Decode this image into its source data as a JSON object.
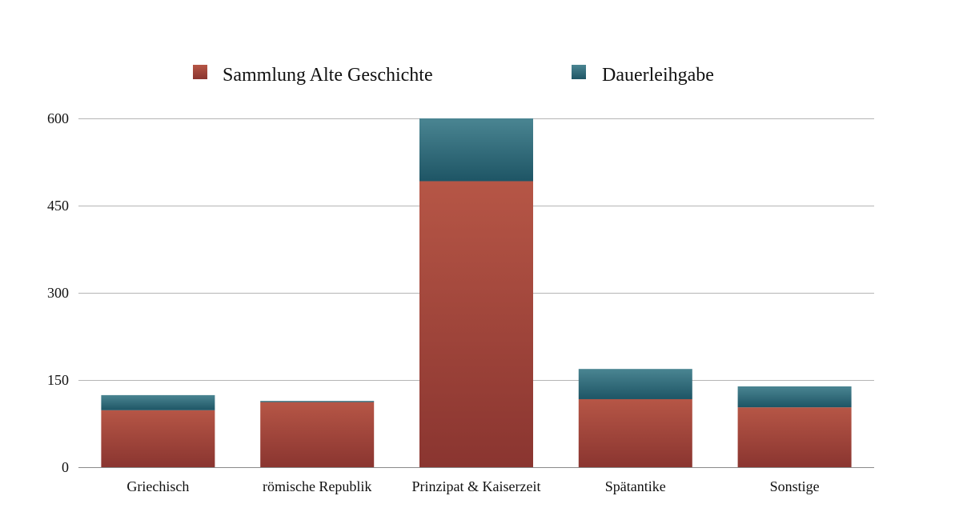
{
  "chart_data": {
    "type": "bar",
    "stacked": true,
    "categories": [
      "Griechisch",
      "römische Republik",
      "Prinzipat & Kaiserzeit",
      "Spätantike",
      "Sonstige"
    ],
    "series": [
      {
        "name": "Sammlung Alte Geschichte",
        "values": [
          98,
          112,
          492,
          117,
          103
        ],
        "color": "#a8473a"
      },
      {
        "name": "Dauerleihgabe",
        "values": [
          26,
          2,
          108,
          52,
          36
        ],
        "color": "#2d6b7a"
      }
    ],
    "yticks": [
      "0",
      "150",
      "300",
      "450",
      "600"
    ],
    "ylim": [
      0,
      600
    ],
    "grid": true,
    "legend_position": "top"
  }
}
